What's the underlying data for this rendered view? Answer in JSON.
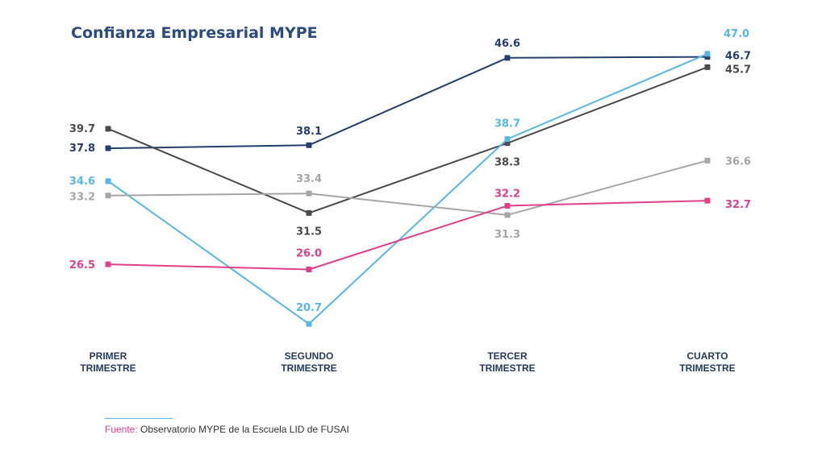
{
  "chart_data": {
    "type": "line",
    "title": "Confianza Empresarial MYPE",
    "categories": [
      [
        "PRIMER",
        "TRIMESTRE"
      ],
      [
        "SEGUNDO",
        "TRIMESTRE"
      ],
      [
        "TERCER",
        "TRIMESTRE"
      ],
      [
        "CUARTO",
        "TRIMESTRE"
      ]
    ],
    "ylim": [
      20,
      48
    ],
    "grid": false,
    "legend": "none",
    "series": [
      {
        "color": "#233f6d",
        "values": [
          37.8,
          38.1,
          46.6,
          46.7
        ]
      },
      {
        "color": "#4a4a4a",
        "values": [
          39.7,
          31.5,
          38.3,
          45.7
        ]
      },
      {
        "color": "#56b8e6",
        "values": [
          34.6,
          20.7,
          38.7,
          47.0
        ]
      },
      {
        "color": "#a6a6a6",
        "values": [
          33.2,
          33.4,
          31.3,
          36.6
        ]
      },
      {
        "color": "#e0408a",
        "values": [
          26.5,
          26.0,
          32.2,
          32.7
        ]
      }
    ],
    "value_labels": [
      [
        "37.8",
        "38.1",
        "46.6",
        "46.7"
      ],
      [
        "39.7",
        "31.5",
        "38.3",
        "45.7"
      ],
      [
        "34.6",
        "20.7",
        "38.7",
        "47.0"
      ],
      [
        "33.2",
        "33.4",
        "31.3",
        "36.6"
      ],
      [
        "26.5",
        "26.0",
        "32.2",
        "32.7"
      ]
    ]
  },
  "source": {
    "label": "Fuente:",
    "text": " Observatorio MYPE de la Escuela LID de FUSAI"
  }
}
